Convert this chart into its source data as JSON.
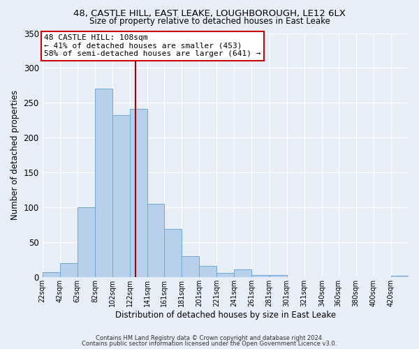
{
  "title_line1": "48, CASTLE HILL, EAST LEAKE, LOUGHBOROUGH, LE12 6LX",
  "title_line2": "Size of property relative to detached houses in East Leake",
  "xlabel": "Distribution of detached houses by size in East Leake",
  "ylabel": "Number of detached properties",
  "bar_labels": [
    "22sqm",
    "42sqm",
    "62sqm",
    "82sqm",
    "102sqm",
    "122sqm",
    "141sqm",
    "161sqm",
    "181sqm",
    "201sqm",
    "221sqm",
    "241sqm",
    "261sqm",
    "281sqm",
    "301sqm",
    "321sqm",
    "340sqm",
    "360sqm",
    "380sqm",
    "400sqm",
    "420sqm"
  ],
  "bar_values": [
    7,
    20,
    100,
    270,
    232,
    241,
    105,
    69,
    30,
    16,
    6,
    11,
    3,
    3,
    0,
    0,
    0,
    0,
    0,
    0,
    2
  ],
  "bar_color": "#b8d0eb",
  "bar_edgecolor": "#6aaad4",
  "vline_x_idx": 4,
  "vline_color": "#aa0000",
  "annotation_title": "48 CASTLE HILL: 108sqm",
  "annotation_line2": "← 41% of detached houses are smaller (453)",
  "annotation_line3": "58% of semi-detached houses are larger (641) →",
  "annotation_box_edgecolor": "#cc0000",
  "annotation_box_facecolor": "#ffffff",
  "ylim": [
    0,
    350
  ],
  "yticks": [
    0,
    50,
    100,
    150,
    200,
    250,
    300,
    350
  ],
  "footer_line1": "Contains HM Land Registry data © Crown copyright and database right 2024.",
  "footer_line2": "Contains public sector information licensed under the Open Government Licence v3.0.",
  "background_color": "#e8eef8"
}
